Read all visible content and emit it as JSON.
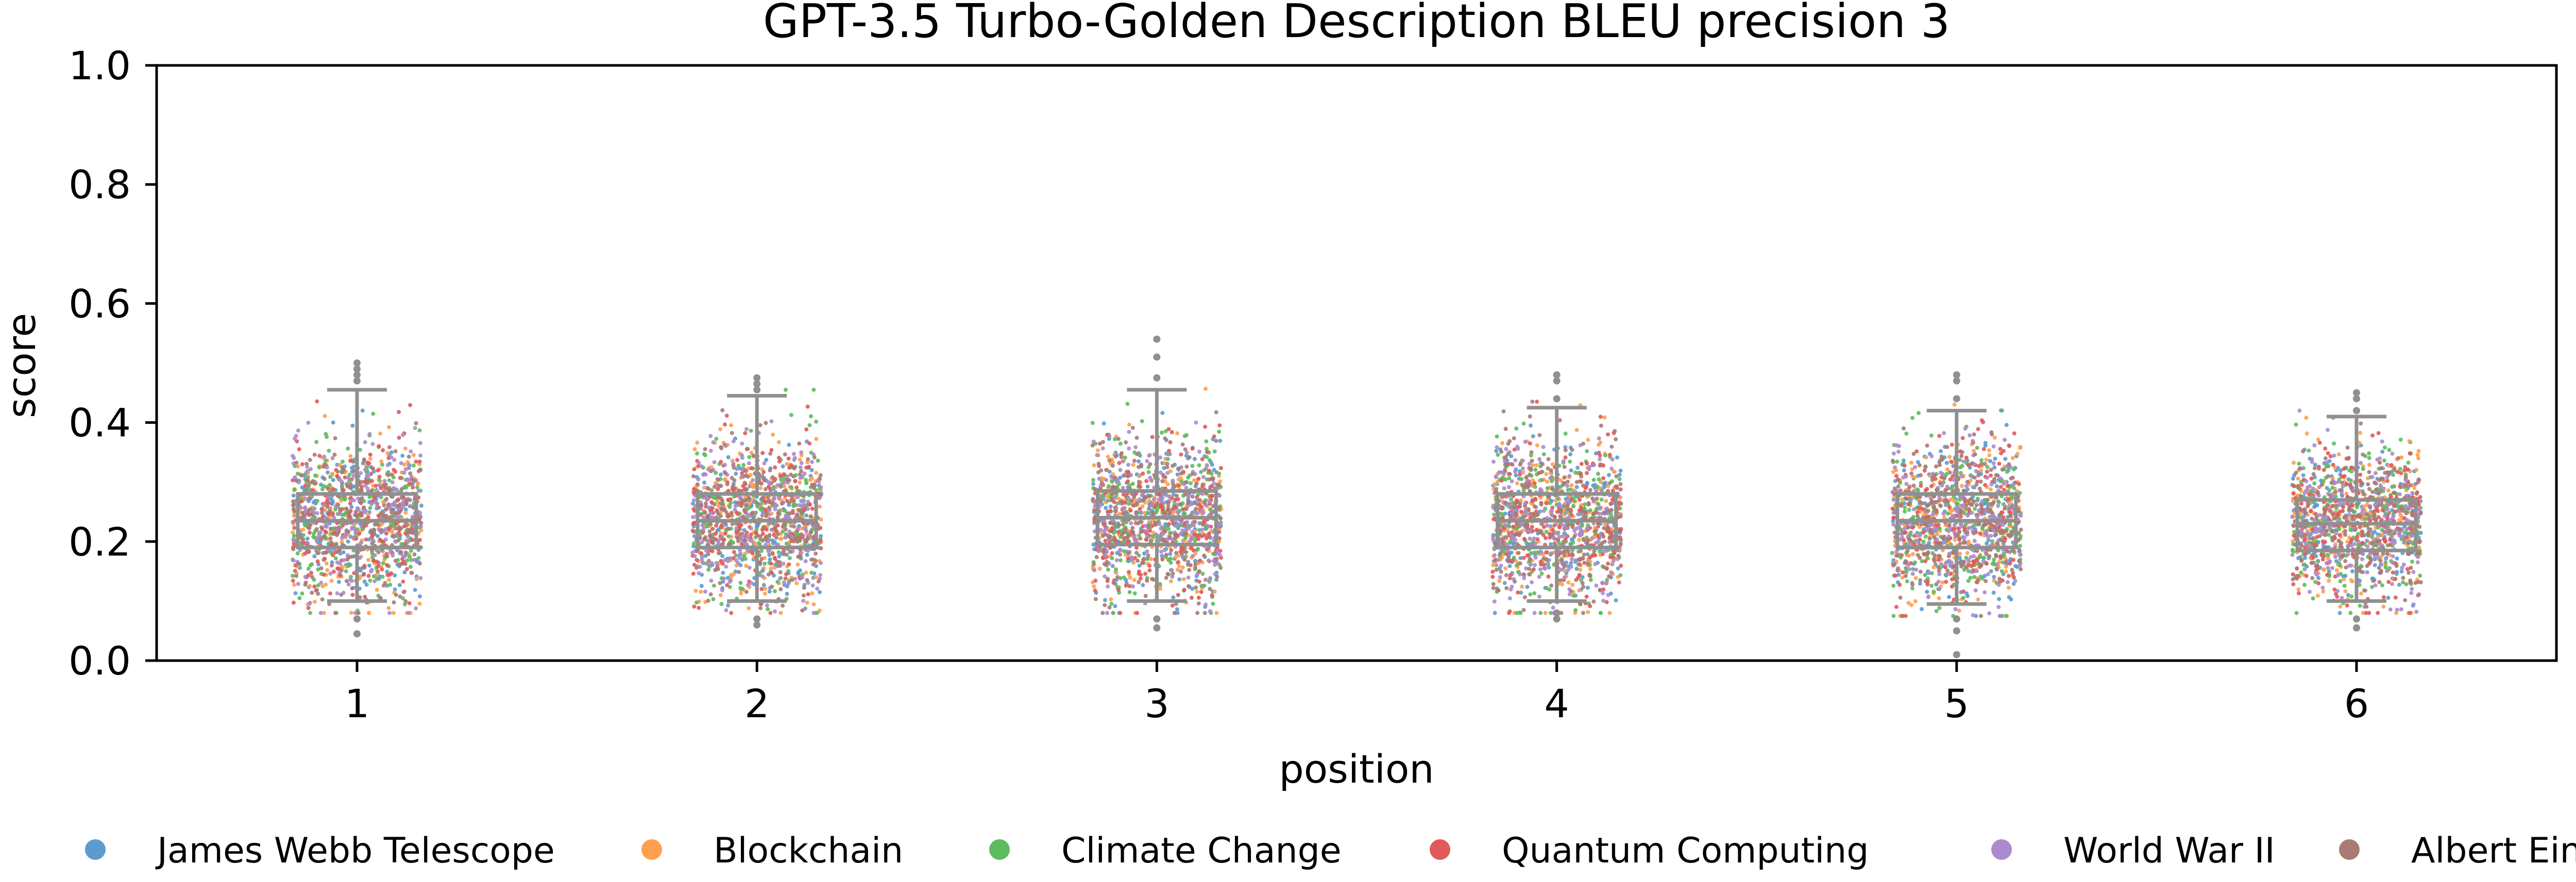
{
  "chart_data": {
    "type": "box+strip",
    "title": "GPT-3.5 Turbo-Golden Description BLEU precision 3",
    "xlabel": "position",
    "ylabel": "score",
    "ylim": [
      0,
      1
    ],
    "yticks": [
      "0.0",
      "0.2",
      "0.4",
      "0.6",
      "0.8",
      "1.0"
    ],
    "categories": [
      "1",
      "2",
      "3",
      "4",
      "5",
      "6"
    ],
    "grid": false,
    "legend_position": "bottom",
    "series": [
      {
        "name": "James Webb Telescope",
        "color": "#5b9bd0"
      },
      {
        "name": "Blockchain",
        "color": "#ffa04f"
      },
      {
        "name": "Climate Change",
        "color": "#5ebb5e"
      },
      {
        "name": "Quantum Computing",
        "color": "#e05a5a"
      },
      {
        "name": "World War II",
        "color": "#ab8bcd"
      },
      {
        "name": "Albert Einstein",
        "color": "#a97b74"
      }
    ],
    "box_color": "#909090",
    "boxes": [
      {
        "position": "1",
        "whisker_low": 0.1,
        "q1": 0.19,
        "median": 0.235,
        "q3": 0.28,
        "whisker_high": 0.455,
        "outliers_high": [
          0.47,
          0.48,
          0.49,
          0.5
        ],
        "outliers_low": [
          0.045,
          0.07
        ]
      },
      {
        "position": "2",
        "whisker_low": 0.1,
        "q1": 0.19,
        "median": 0.235,
        "q3": 0.28,
        "whisker_high": 0.445,
        "outliers_high": [
          0.455,
          0.465,
          0.475
        ],
        "outliers_low": [
          0.06,
          0.07
        ]
      },
      {
        "position": "3",
        "whisker_low": 0.1,
        "q1": 0.195,
        "median": 0.24,
        "q3": 0.285,
        "whisker_high": 0.455,
        "outliers_high": [
          0.475,
          0.51,
          0.54
        ],
        "outliers_low": [
          0.055,
          0.07
        ]
      },
      {
        "position": "4",
        "whisker_low": 0.1,
        "q1": 0.19,
        "median": 0.235,
        "q3": 0.28,
        "whisker_high": 0.425,
        "outliers_high": [
          0.44,
          0.47,
          0.48
        ],
        "outliers_low": [
          0.07,
          0.08
        ]
      },
      {
        "position": "5",
        "whisker_low": 0.095,
        "q1": 0.19,
        "median": 0.235,
        "q3": 0.28,
        "whisker_high": 0.42,
        "outliers_high": [
          0.44,
          0.47,
          0.48
        ],
        "outliers_low": [
          0.01,
          0.05,
          0.07
        ]
      },
      {
        "position": "6",
        "whisker_low": 0.1,
        "q1": 0.185,
        "median": 0.23,
        "q3": 0.27,
        "whisker_high": 0.41,
        "outliers_high": [
          0.42,
          0.44,
          0.45
        ],
        "outliers_low": [
          0.055,
          0.07
        ]
      }
    ],
    "strip_points_per_series": 220
  }
}
